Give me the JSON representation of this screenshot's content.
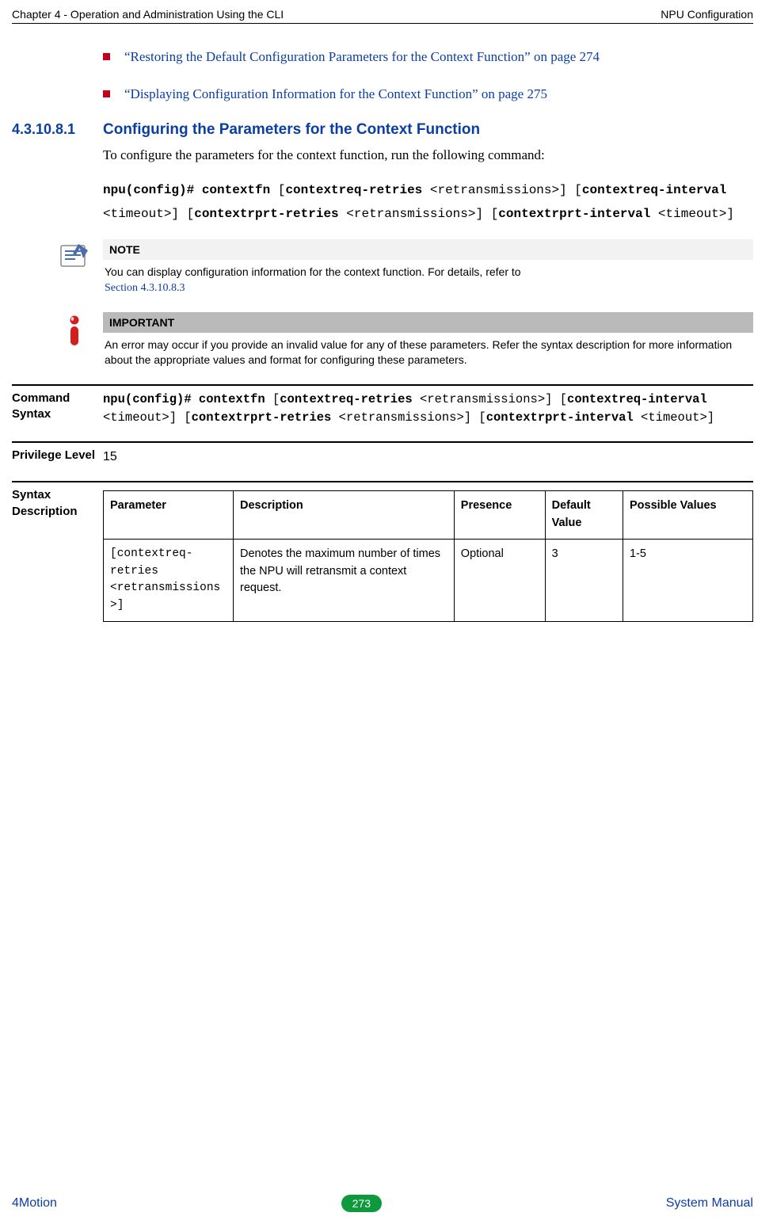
{
  "header": {
    "left": "Chapter 4 - Operation and Administration Using the CLI",
    "right": "NPU Configuration"
  },
  "bullets": [
    "“Restoring the Default Configuration Parameters for the Context Function” on page 274",
    "“Displaying Configuration Information for the Context Function” on page 275"
  ],
  "section": {
    "number": "4.3.10.8.1",
    "title": "Configuring the Parameters for the Context Function",
    "intro": "To configure the parameters for the context function, run the following command:"
  },
  "code1": "<b>npu(config)# contextfn</b> [<b>contextreq-retries</b> &lt;retransmissions&gt;] [<b>contextreq-interval</b> &lt;timeout&gt;] [<b>contextrprt-retries</b> &lt;retransmissions&gt;] [<b>contextrprt-interval</b> &lt;timeout&gt;]",
  "note": {
    "label": "NOTE",
    "text": "You can display configuration information for the context function. For details, refer to",
    "link": "Section 4.3.10.8.3"
  },
  "important": {
    "label": "IMPORTANT",
    "text": "An error may occur if you provide an invalid value for any of these parameters. Refer the syntax description for more information about the appropriate values and format for configuring these parameters."
  },
  "cmdSyntax": {
    "label": "Command Syntax",
    "text": "<b>npu(config)# contextfn</b> [<b>contextreq-retries</b> &lt;retransmissions&gt;] [<b>contextreq-interval</b> &lt;timeout&gt;] [<b>contextrprt-retries</b> &lt;retransmissions&gt;] [<b>contextrprt-interval</b> &lt;timeout&gt;]"
  },
  "priv": {
    "label": "Privilege Level",
    "value": "15"
  },
  "syntax": {
    "label": "Syntax Description",
    "columns": [
      "Parameter",
      "Description",
      "Presence",
      "Default Value",
      "Possible Values"
    ],
    "colWidths": [
      "20%",
      "34%",
      "14%",
      "12%",
      "20%"
    ],
    "rows": [
      {
        "param": "[contextreq-retries <retransmissions>]",
        "desc": "Denotes the maximum number of times the NPU will retransmit a context request.",
        "presence": "Optional",
        "default": "3",
        "possible": "1-5"
      }
    ]
  },
  "footer": {
    "left": "4Motion",
    "page": "273",
    "right": "System Manual"
  },
  "colors": {
    "link_blue": "#0b3ea4",
    "bullet_red": "#c2001d",
    "note_bg": "#f2f2f2",
    "imp_bg": "#bababa",
    "page_badge_bg": "#0e9a3c"
  }
}
